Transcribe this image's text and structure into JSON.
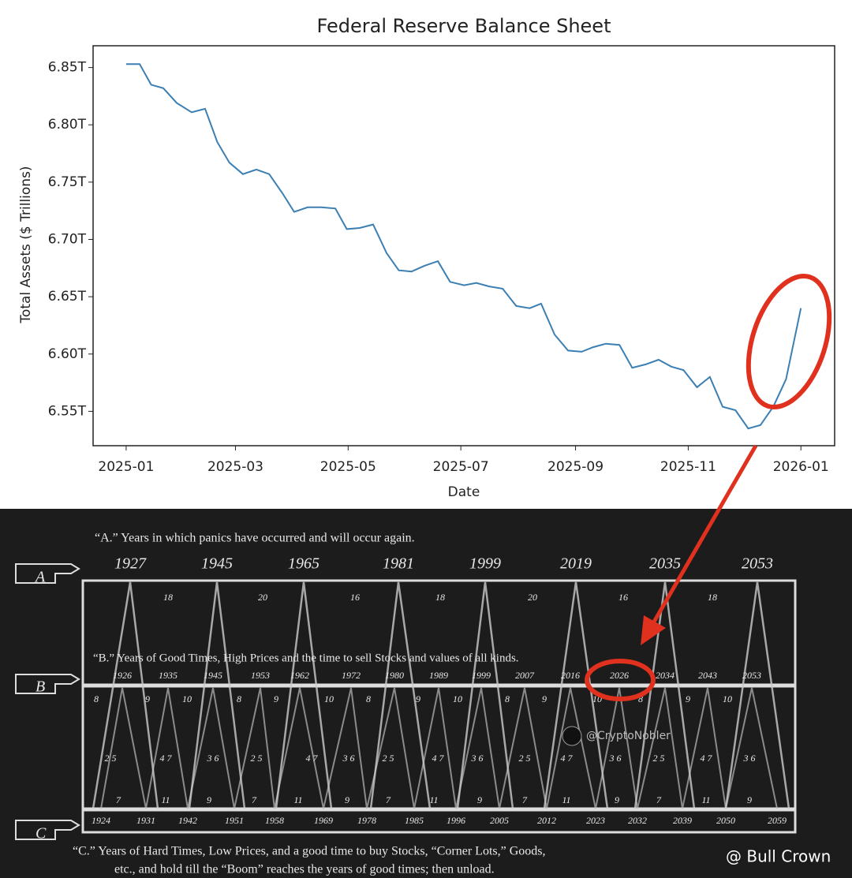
{
  "chart_data": {
    "type": "line",
    "title": "Federal Reserve Balance Sheet",
    "x_label": "Date",
    "y_label": "Total Assets ($ Trillions)",
    "x": [
      2025.0,
      2025.02,
      2025.037,
      2025.055,
      2025.075,
      2025.097,
      2025.117,
      2025.135,
      2025.153,
      2025.173,
      2025.193,
      2025.212,
      2025.232,
      2025.249,
      2025.269,
      2025.289,
      2025.31,
      2025.327,
      2025.346,
      2025.366,
      2025.386,
      2025.404,
      2025.423,
      2025.442,
      2025.462,
      2025.48,
      2025.501,
      2025.519,
      2025.538,
      2025.558,
      2025.578,
      2025.598,
      2025.615,
      2025.635,
      2025.655,
      2025.675,
      2025.692,
      2025.711,
      2025.731,
      2025.75,
      2025.77,
      2025.789,
      2025.808,
      2025.826,
      2025.846,
      2025.865,
      2025.884,
      2025.903,
      2025.922,
      2025.94,
      2025.959,
      2025.978,
      2026.0
    ],
    "series": [
      {
        "name": "Total Assets",
        "color": "#3b7fb3",
        "values": [
          6.853,
          6.853,
          6.835,
          6.832,
          6.819,
          6.811,
          6.814,
          6.785,
          6.767,
          6.757,
          6.761,
          6.757,
          6.74,
          6.724,
          6.728,
          6.728,
          6.727,
          6.709,
          6.71,
          6.713,
          6.688,
          6.673,
          6.672,
          6.677,
          6.681,
          6.663,
          6.66,
          6.662,
          6.659,
          6.657,
          6.642,
          6.64,
          6.644,
          6.617,
          6.603,
          6.602,
          6.606,
          6.609,
          6.608,
          6.588,
          6.591,
          6.595,
          6.589,
          6.586,
          6.571,
          6.58,
          6.554,
          6.551,
          6.535,
          6.538,
          6.554,
          6.578,
          6.64
        ]
      }
    ],
    "xlim": [
      2024.951,
      2026.05
    ],
    "xticks": [
      {
        "value": 2025.0,
        "label": "2025-01"
      },
      {
        "value": 2025.162,
        "label": "2025-03"
      },
      {
        "value": 2025.329,
        "label": "2025-05"
      },
      {
        "value": 2025.496,
        "label": "2025-07"
      },
      {
        "value": 2025.666,
        "label": "2025-09"
      },
      {
        "value": 2025.833,
        "label": "2025-11"
      },
      {
        "value": 2026.0,
        "label": "2026-01"
      }
    ],
    "ylim": [
      6.52,
      6.869
    ],
    "yticks": [
      {
        "value": 6.55,
        "label": "6.55T"
      },
      {
        "value": 6.6,
        "label": "6.60T"
      },
      {
        "value": 6.65,
        "label": "6.65T"
      },
      {
        "value": 6.7,
        "label": "6.70T"
      },
      {
        "value": 6.75,
        "label": "6.75T"
      },
      {
        "value": 6.8,
        "label": "6.80T"
      },
      {
        "value": 6.85,
        "label": "6.85T"
      }
    ],
    "grid": false
  },
  "benner": {
    "a_text": "“A.” Years in which panics have occurred and will occur again.",
    "a_mark": "A",
    "b_mark": "B",
    "c_mark": "C",
    "a_years": [
      "1927",
      "1945",
      "1965",
      "1981",
      "1999",
      "2019",
      "2035",
      "2053"
    ],
    "a_intervals": [
      "18",
      "20",
      "16",
      "18",
      "20",
      "16",
      "18"
    ],
    "b_text": "“B.” Years of Good Times, High Prices and the time to sell Stocks and values of all kinds.",
    "b_years": [
      "1926",
      "1935",
      "1945",
      "1953",
      "1962",
      "1972",
      "1980",
      "1989",
      "1999",
      "2007",
      "2016",
      "2026",
      "2034",
      "2043",
      "2053"
    ],
    "row_top": [
      "8",
      "9",
      "10",
      "8",
      "9",
      "10",
      "8",
      "9",
      "10",
      "8",
      "9",
      "10",
      "8",
      "9",
      "10"
    ],
    "row_mid": [
      "2 5",
      "4 7",
      "3 6",
      "2 5",
      "4 7",
      "3 6",
      "2 5",
      "4 7",
      "3 6",
      "2 5",
      "4 7",
      "3 6",
      "2 5",
      "4 7",
      "3 6"
    ],
    "row_low": [
      "7",
      "11",
      "9",
      "7",
      "11",
      "9",
      "7",
      "11",
      "9",
      "7",
      "11",
      "9",
      "7",
      "11",
      "9"
    ],
    "c_years": [
      "1924",
      "1931",
      "1942",
      "1951",
      "1958",
      "1969",
      "1978",
      "1985",
      "1996",
      "2005",
      "2012",
      "2023",
      "2032",
      "2039",
      "2050",
      "2059"
    ],
    "c_text_1": "“C.” Years of Hard Times, Low Prices, and a good time to buy Stocks, “Corner Lots,” Goods,",
    "c_text_2": "etc., and hold till the “Boom” reaches the years of good times; then unload.",
    "watermark": "@CryptoNobler",
    "credit": "@ Bull Crown"
  }
}
